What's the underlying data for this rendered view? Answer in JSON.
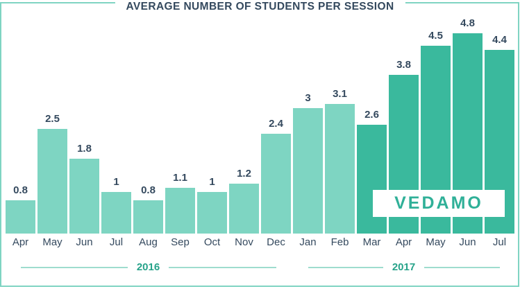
{
  "title": "AVERAGE NUMBER OF STUDENTS PER SESSION",
  "watermark": {
    "text": "VEDAMO"
  },
  "colors": {
    "bar_light": "#7ed5c2",
    "bar_dark": "#3ab99d",
    "value_text": "#34495e",
    "month_text": "#34495e",
    "year_text": "#27a38a",
    "logo_text": "#30b098",
    "rule": "#9edcce",
    "frame": "#7fd4c2",
    "background": "#ffffff"
  },
  "chart_data": {
    "type": "bar",
    "title": "AVERAGE NUMBER OF STUDENTS PER SESSION",
    "xlabel": "",
    "ylabel": "",
    "ylim": [
      0,
      5
    ],
    "grid": false,
    "legend": "none",
    "categories": [
      "Apr",
      "May",
      "Jun",
      "Jul",
      "Aug",
      "Sep",
      "Oct",
      "Nov",
      "Dec",
      "Jan",
      "Feb",
      "Mar",
      "Apr",
      "May",
      "Jun",
      "Jul"
    ],
    "values": [
      0.8,
      2.5,
      1.8,
      1,
      0.8,
      1.1,
      1,
      1.2,
      2.4,
      3,
      3.1,
      2.6,
      3.8,
      4.5,
      4.8,
      4.4
    ],
    "bars": [
      {
        "month": "Apr",
        "value": 0.8,
        "label": "0.8",
        "color": "light",
        "year": "2016"
      },
      {
        "month": "May",
        "value": 2.5,
        "label": "2.5",
        "color": "light",
        "year": "2016"
      },
      {
        "month": "Jun",
        "value": 1.8,
        "label": "1.8",
        "color": "light",
        "year": "2016"
      },
      {
        "month": "Jul",
        "value": 1,
        "label": "1",
        "color": "light",
        "year": "2016"
      },
      {
        "month": "Aug",
        "value": 0.8,
        "label": "0.8",
        "color": "light",
        "year": "2016"
      },
      {
        "month": "Sep",
        "value": 1.1,
        "label": "1.1",
        "color": "light",
        "year": "2016"
      },
      {
        "month": "Oct",
        "value": 1,
        "label": "1",
        "color": "light",
        "year": "2016"
      },
      {
        "month": "Nov",
        "value": 1.2,
        "label": "1.2",
        "color": "light",
        "year": "2016"
      },
      {
        "month": "Dec",
        "value": 2.4,
        "label": "2.4",
        "color": "light",
        "year": "2016"
      },
      {
        "month": "Jan",
        "value": 3,
        "label": "3",
        "color": "light",
        "year": "2017"
      },
      {
        "month": "Feb",
        "value": 3.1,
        "label": "3.1",
        "color": "light",
        "year": "2017"
      },
      {
        "month": "Mar",
        "value": 2.6,
        "label": "2.6",
        "color": "dark",
        "year": "2017"
      },
      {
        "month": "Apr",
        "value": 3.8,
        "label": "3.8",
        "color": "dark",
        "year": "2017"
      },
      {
        "month": "May",
        "value": 4.5,
        "label": "4.5",
        "color": "dark",
        "year": "2017"
      },
      {
        "month": "Jun",
        "value": 4.8,
        "label": "4.8",
        "color": "dark",
        "year": "2017"
      },
      {
        "month": "Jul",
        "value": 4.4,
        "label": "4.4",
        "color": "dark",
        "year": "2017"
      }
    ],
    "year_groups": [
      {
        "label": "2016",
        "start_index": 0,
        "end_index": 8
      },
      {
        "label": "2017",
        "start_index": 9,
        "end_index": 15
      }
    ]
  }
}
